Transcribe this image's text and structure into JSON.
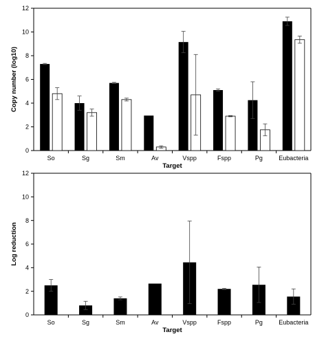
{
  "chart_data": [
    {
      "type": "bar",
      "xlabel": "Target",
      "ylabel": "Copy number (log10)",
      "ylim": [
        0,
        12
      ],
      "yticks": [
        "0",
        "2",
        "4",
        "6",
        "8",
        "10",
        "12"
      ],
      "categories": [
        "So",
        "Sg",
        "Sm",
        "Av",
        "Vspp",
        "Fspp",
        "Pg",
        "Eubacteria"
      ],
      "grid": false,
      "legend": "none",
      "series": [
        {
          "color": "#000000",
          "values": [
            7.3,
            4.0,
            5.7,
            2.95,
            9.15,
            5.1,
            4.25,
            10.9
          ],
          "errors": [
            0.05,
            0.6,
            0.05,
            0.0,
            0.9,
            0.1,
            1.55,
            0.35
          ]
        },
        {
          "color": "#ffffff",
          "values": [
            4.8,
            3.2,
            4.3,
            0.3,
            4.7,
            2.9,
            1.75,
            9.35
          ],
          "errors": [
            0.5,
            0.3,
            0.12,
            0.1,
            3.4,
            0.05,
            0.5,
            0.3
          ]
        }
      ]
    },
    {
      "type": "bar",
      "xlabel": "Target",
      "ylabel": "Log reduction",
      "ylim": [
        0,
        12
      ],
      "yticks": [
        "0",
        "2",
        "4",
        "6",
        "8",
        "10",
        "12"
      ],
      "categories": [
        "So",
        "Sg",
        "Sm",
        "Av",
        "Vspp",
        "Fspp",
        "Pg",
        "Eubacteria"
      ],
      "grid": false,
      "legend": "none",
      "series": [
        {
          "color": "#000000",
          "values": [
            2.5,
            0.8,
            1.4,
            2.65,
            4.45,
            2.2,
            2.55,
            1.55
          ],
          "errors": [
            0.5,
            0.35,
            0.12,
            0.0,
            3.5,
            0.05,
            1.5,
            0.65
          ]
        }
      ]
    }
  ]
}
